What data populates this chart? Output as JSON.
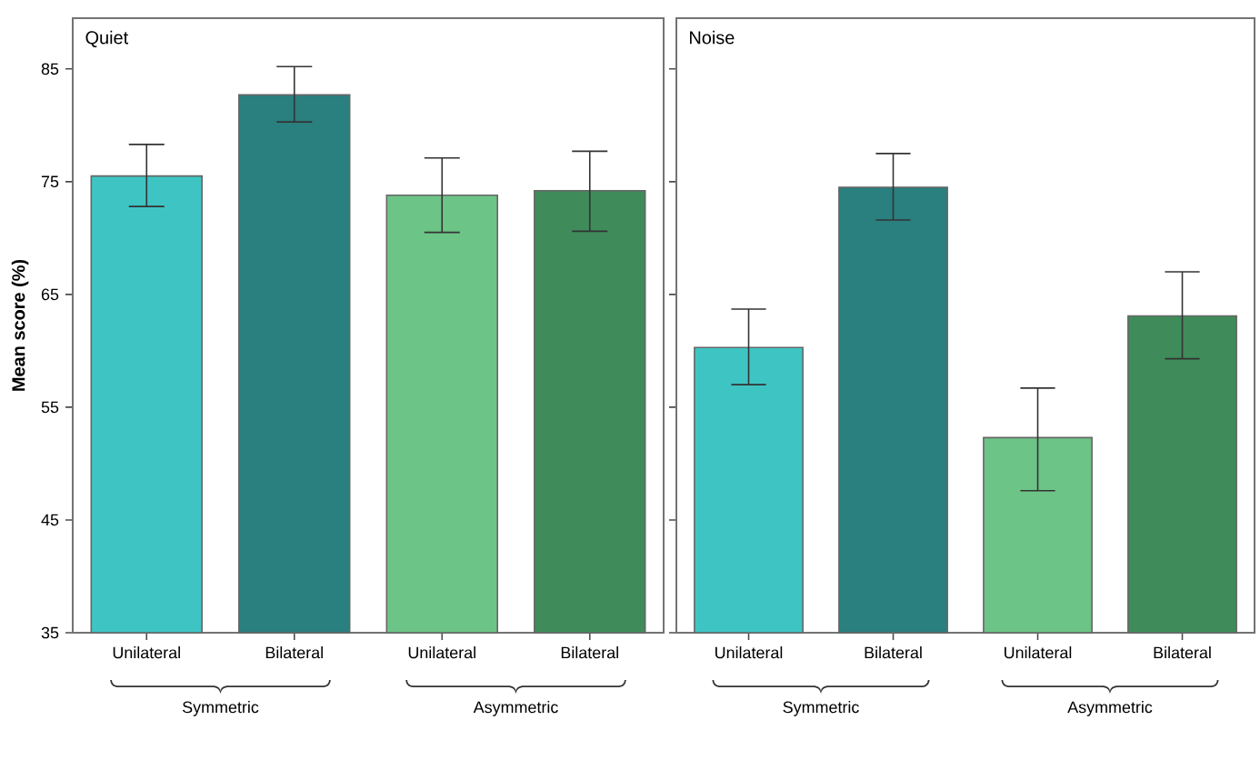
{
  "chart_data": [
    {
      "type": "bar",
      "title": "Quiet",
      "ylabel": "Mean score (%)",
      "categories": [
        "Unilateral",
        "Bilateral",
        "Unilateral",
        "Bilateral"
      ],
      "values": [
        75.5,
        82.7,
        73.8,
        74.2
      ],
      "errors": [
        [
          72.8,
          78.3
        ],
        [
          80.3,
          85.2
        ],
        [
          70.5,
          77.1
        ],
        [
          70.6,
          77.7
        ]
      ],
      "colors": [
        "#3fc4c4",
        "#2a7f7f",
        "#6dc487",
        "#3f8c5a"
      ],
      "ylim": [
        35,
        89.5
      ],
      "yticks": [
        35,
        45,
        55,
        65,
        75,
        85
      ],
      "annotations": [
        "Symmetric",
        "Asymmetric"
      ]
    },
    {
      "type": "bar",
      "title": "Noise",
      "categories": [
        "Unilateral",
        "Bilateral",
        "Unilateral",
        "Bilateral"
      ],
      "values": [
        60.3,
        74.5,
        52.3,
        63.1
      ],
      "errors": [
        [
          57.0,
          63.7
        ],
        [
          71.6,
          77.5
        ],
        [
          47.6,
          56.7
        ],
        [
          59.3,
          67.0
        ]
      ],
      "colors": [
        "#3fc4c4",
        "#2a7f7f",
        "#6dc487",
        "#3f8c5a"
      ],
      "ylim": [
        35,
        89.5
      ],
      "yticks": [
        35,
        45,
        55,
        65,
        75,
        85
      ],
      "tick_labels": "x",
      "annotations": [
        "Symmetric",
        "Asymmetric"
      ]
    }
  ]
}
